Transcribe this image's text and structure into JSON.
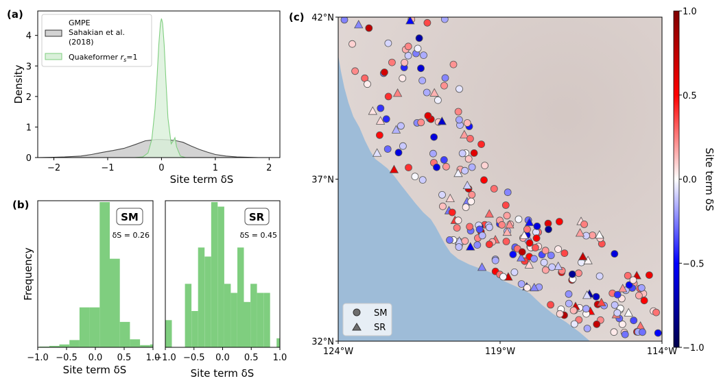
{
  "panel_labels": {
    "a": "(a)",
    "b": "(b)",
    "c": "(c)"
  },
  "chart_data": [
    {
      "id": "a",
      "type": "area",
      "xlabel": "Site term δS",
      "ylabel": "Density",
      "xlim": [
        -2.3,
        2.2
      ],
      "ylim": [
        0,
        4.8
      ],
      "xticks": [
        -2,
        -1,
        0,
        1,
        2
      ],
      "yticks": [
        0,
        1,
        2,
        3,
        4
      ],
      "legend_position": "top-left",
      "series": [
        {
          "name": "GMPE Sahakian et al. (2018)",
          "color": "#b3b3b3",
          "x": [
            -2.3,
            -2.0,
            -1.8,
            -1.5,
            -1.3,
            -1.1,
            -0.9,
            -0.7,
            -0.5,
            -0.3,
            -0.1,
            0.0,
            0.1,
            0.25,
            0.4,
            0.55,
            0.7,
            0.85,
            1.0,
            1.2,
            1.4,
            1.6,
            1.8
          ],
          "values": [
            0,
            0.01,
            0.02,
            0.05,
            0.1,
            0.17,
            0.23,
            0.3,
            0.42,
            0.55,
            0.59,
            0.59,
            0.58,
            0.56,
            0.5,
            0.38,
            0.27,
            0.18,
            0.1,
            0.05,
            0.02,
            0.01,
            0
          ]
        },
        {
          "name": "Quakeformer r_s=1",
          "color": "#7fce7f",
          "x": [
            -0.5,
            -0.35,
            -0.25,
            -0.18,
            -0.12,
            -0.08,
            -0.05,
            -0.02,
            0.0,
            0.02,
            0.05,
            0.08,
            0.12,
            0.18,
            0.22,
            0.25,
            0.28,
            0.35,
            0.45
          ],
          "values": [
            0,
            0.02,
            0.15,
            0.6,
            1.6,
            2.7,
            3.7,
            4.4,
            4.55,
            4.4,
            3.7,
            2.6,
            1.3,
            0.45,
            0.55,
            0.65,
            0.35,
            0.05,
            0
          ]
        }
      ]
    },
    {
      "id": "b1",
      "type": "bar",
      "title": "SM",
      "annotation": "δS = 0.26",
      "xlabel": "Site term δS",
      "ylabel": "Frequency",
      "xlim": [
        -1.0,
        1.0
      ],
      "xticks": [
        -1.0,
        -0.5,
        0.0,
        0.5,
        1.0
      ],
      "bin_width": 0.175,
      "bin_start": -0.975,
      "values": [
        1,
        2,
        4,
        10,
        55,
        55,
        200,
        122,
        35,
        11,
        3,
        4
      ]
    },
    {
      "id": "b2",
      "type": "bar",
      "title": "SR",
      "annotation": "δS = 0.45",
      "xlabel": "Site term δS",
      "xlim": [
        -1.0,
        1.0
      ],
      "xticks": [
        -1.0,
        -0.5,
        0.0,
        0.5,
        1.0
      ],
      "bin_width": 0.1143,
      "bin_start": -1.0,
      "values": [
        6,
        0,
        0,
        14,
        8,
        22,
        20,
        32,
        31,
        14,
        12,
        22,
        10,
        14,
        12,
        12,
        0,
        2
      ]
    },
    {
      "id": "c",
      "type": "scatter",
      "xlim": [
        -124,
        -114
      ],
      "ylim": [
        32,
        42
      ],
      "xticks": [
        "124°W",
        "119°W",
        "114°W"
      ],
      "yticks": [
        "32°N",
        "37°N",
        "42°N"
      ],
      "legend": [
        "SM",
        "SR"
      ],
      "colorbar": {
        "label": "Site term δS",
        "range": [
          -1.0,
          1.0
        ],
        "ticks": [
          "−1.0",
          "−0.5",
          "0.0",
          "0.5",
          "1.0"
        ],
        "tick_values": [
          -1.0,
          -0.5,
          0.0,
          0.5,
          1.0
        ]
      },
      "ocean_color": "#9ebcd8",
      "land_color": "#dcd2d0"
    }
  ]
}
